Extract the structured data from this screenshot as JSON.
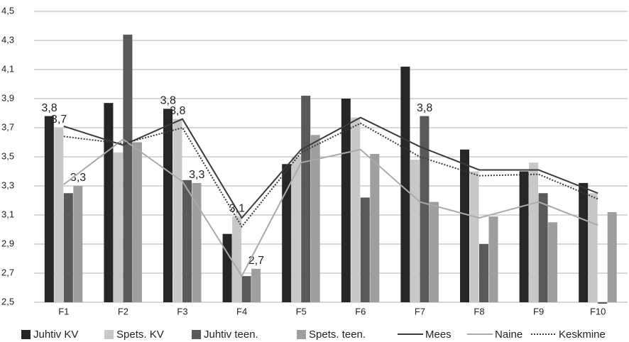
{
  "chart_data": {
    "type": "bar",
    "categories": [
      "F1",
      "F2",
      "F3",
      "F4",
      "F5",
      "F6",
      "F7",
      "F8",
      "F9",
      "F10"
    ],
    "ylim": [
      2.5,
      4.5
    ],
    "yticks": [
      {
        "value": 2.5,
        "label": "2,5"
      },
      {
        "value": 2.7,
        "label": "2,7"
      },
      {
        "value": 2.9,
        "label": "2,9"
      },
      {
        "value": 3.1,
        "label": "3,1"
      },
      {
        "value": 3.3,
        "label": "3,3"
      },
      {
        "value": 3.5,
        "label": "3,5"
      },
      {
        "value": 3.7,
        "label": "3,7"
      },
      {
        "value": 3.9,
        "label": "3,9"
      },
      {
        "value": 4.1,
        "label": "4,1"
      },
      {
        "value": 4.3,
        "label": "4,3"
      },
      {
        "value": 4.5,
        "label": "4,5"
      }
    ],
    "grid": true,
    "legend": "bottom",
    "series": [
      {
        "name": "Juhtiv KV",
        "type": "bar",
        "color": "#262626",
        "values": [
          3.78,
          3.87,
          3.83,
          2.97,
          3.45,
          3.9,
          4.12,
          3.55,
          3.4,
          3.32
        ],
        "value_labels": [
          "3,8",
          null,
          "3,8",
          null,
          null,
          null,
          null,
          null,
          null,
          null
        ]
      },
      {
        "name": "Spets. KV",
        "type": "bar",
        "color": "#c8c8c8",
        "values": [
          3.7,
          3.53,
          3.76,
          3.09,
          3.5,
          3.77,
          3.48,
          3.4,
          3.46,
          3.25
        ],
        "value_labels": [
          "3,7",
          null,
          "3,8",
          "3,1",
          null,
          null,
          null,
          null,
          null,
          null
        ]
      },
      {
        "name": "Juhtiv teen.",
        "type": "bar",
        "color": "#595959",
        "values": [
          3.25,
          4.34,
          3.34,
          2.68,
          3.92,
          3.22,
          3.78,
          2.9,
          3.25,
          2.49
        ],
        "value_labels": [
          null,
          null,
          null,
          null,
          null,
          null,
          "3,8",
          null,
          null,
          null
        ]
      },
      {
        "name": "Spets. teen.",
        "type": "bar",
        "color": "#9e9e9e",
        "values": [
          3.3,
          3.6,
          3.32,
          2.73,
          3.65,
          3.52,
          3.19,
          3.09,
          3.05,
          3.12
        ],
        "value_labels": [
          "3,3",
          null,
          "3,3",
          "2,7",
          null,
          null,
          null,
          null,
          null,
          null
        ]
      },
      {
        "name": "Mees",
        "type": "line",
        "color": "#3a3a3a",
        "values": [
          3.71,
          3.58,
          3.76,
          3.08,
          3.55,
          3.77,
          3.57,
          3.41,
          3.41,
          3.25
        ]
      },
      {
        "name": "Naine",
        "type": "line",
        "color": "#aaaaaa",
        "values": [
          3.31,
          3.62,
          3.33,
          2.68,
          3.46,
          3.55,
          3.19,
          3.08,
          3.19,
          3.03
        ]
      },
      {
        "name": "Keskmine",
        "type": "line",
        "color": "#3a3a3a",
        "dash": true,
        "values": [
          3.64,
          3.59,
          3.7,
          3.02,
          3.53,
          3.73,
          3.5,
          3.37,
          3.38,
          3.21
        ]
      }
    ]
  }
}
